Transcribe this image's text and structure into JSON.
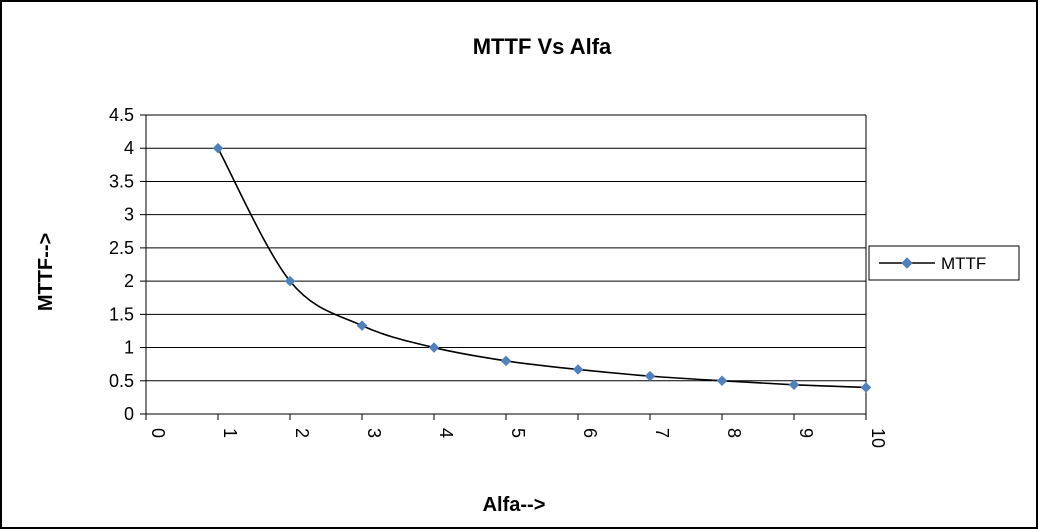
{
  "chart_data": {
    "type": "line",
    "title": "MTTF Vs Alfa",
    "xlabel": "Alfa-->",
    "ylabel": "MTTF-->",
    "x_ticks": [
      "0",
      "1",
      "2",
      "3",
      "4",
      "5",
      "6",
      "7",
      "8",
      "9",
      "10"
    ],
    "y_ticks": [
      "0",
      "0.5",
      "1",
      "1.5",
      "2",
      "2.5",
      "3",
      "3.5",
      "4",
      "4.5"
    ],
    "xlim": [
      0,
      10
    ],
    "ylim": [
      0,
      4.5
    ],
    "grid": "horizontal",
    "legend_position": "right",
    "series": [
      {
        "name": "MTTF",
        "color": "#4F81BD",
        "x": [
          1,
          2,
          3,
          4,
          5,
          6,
          7,
          8,
          9,
          10
        ],
        "values": [
          4,
          2,
          1.33,
          1,
          0.8,
          0.67,
          0.57,
          0.5,
          0.44,
          0.4
        ]
      }
    ]
  }
}
